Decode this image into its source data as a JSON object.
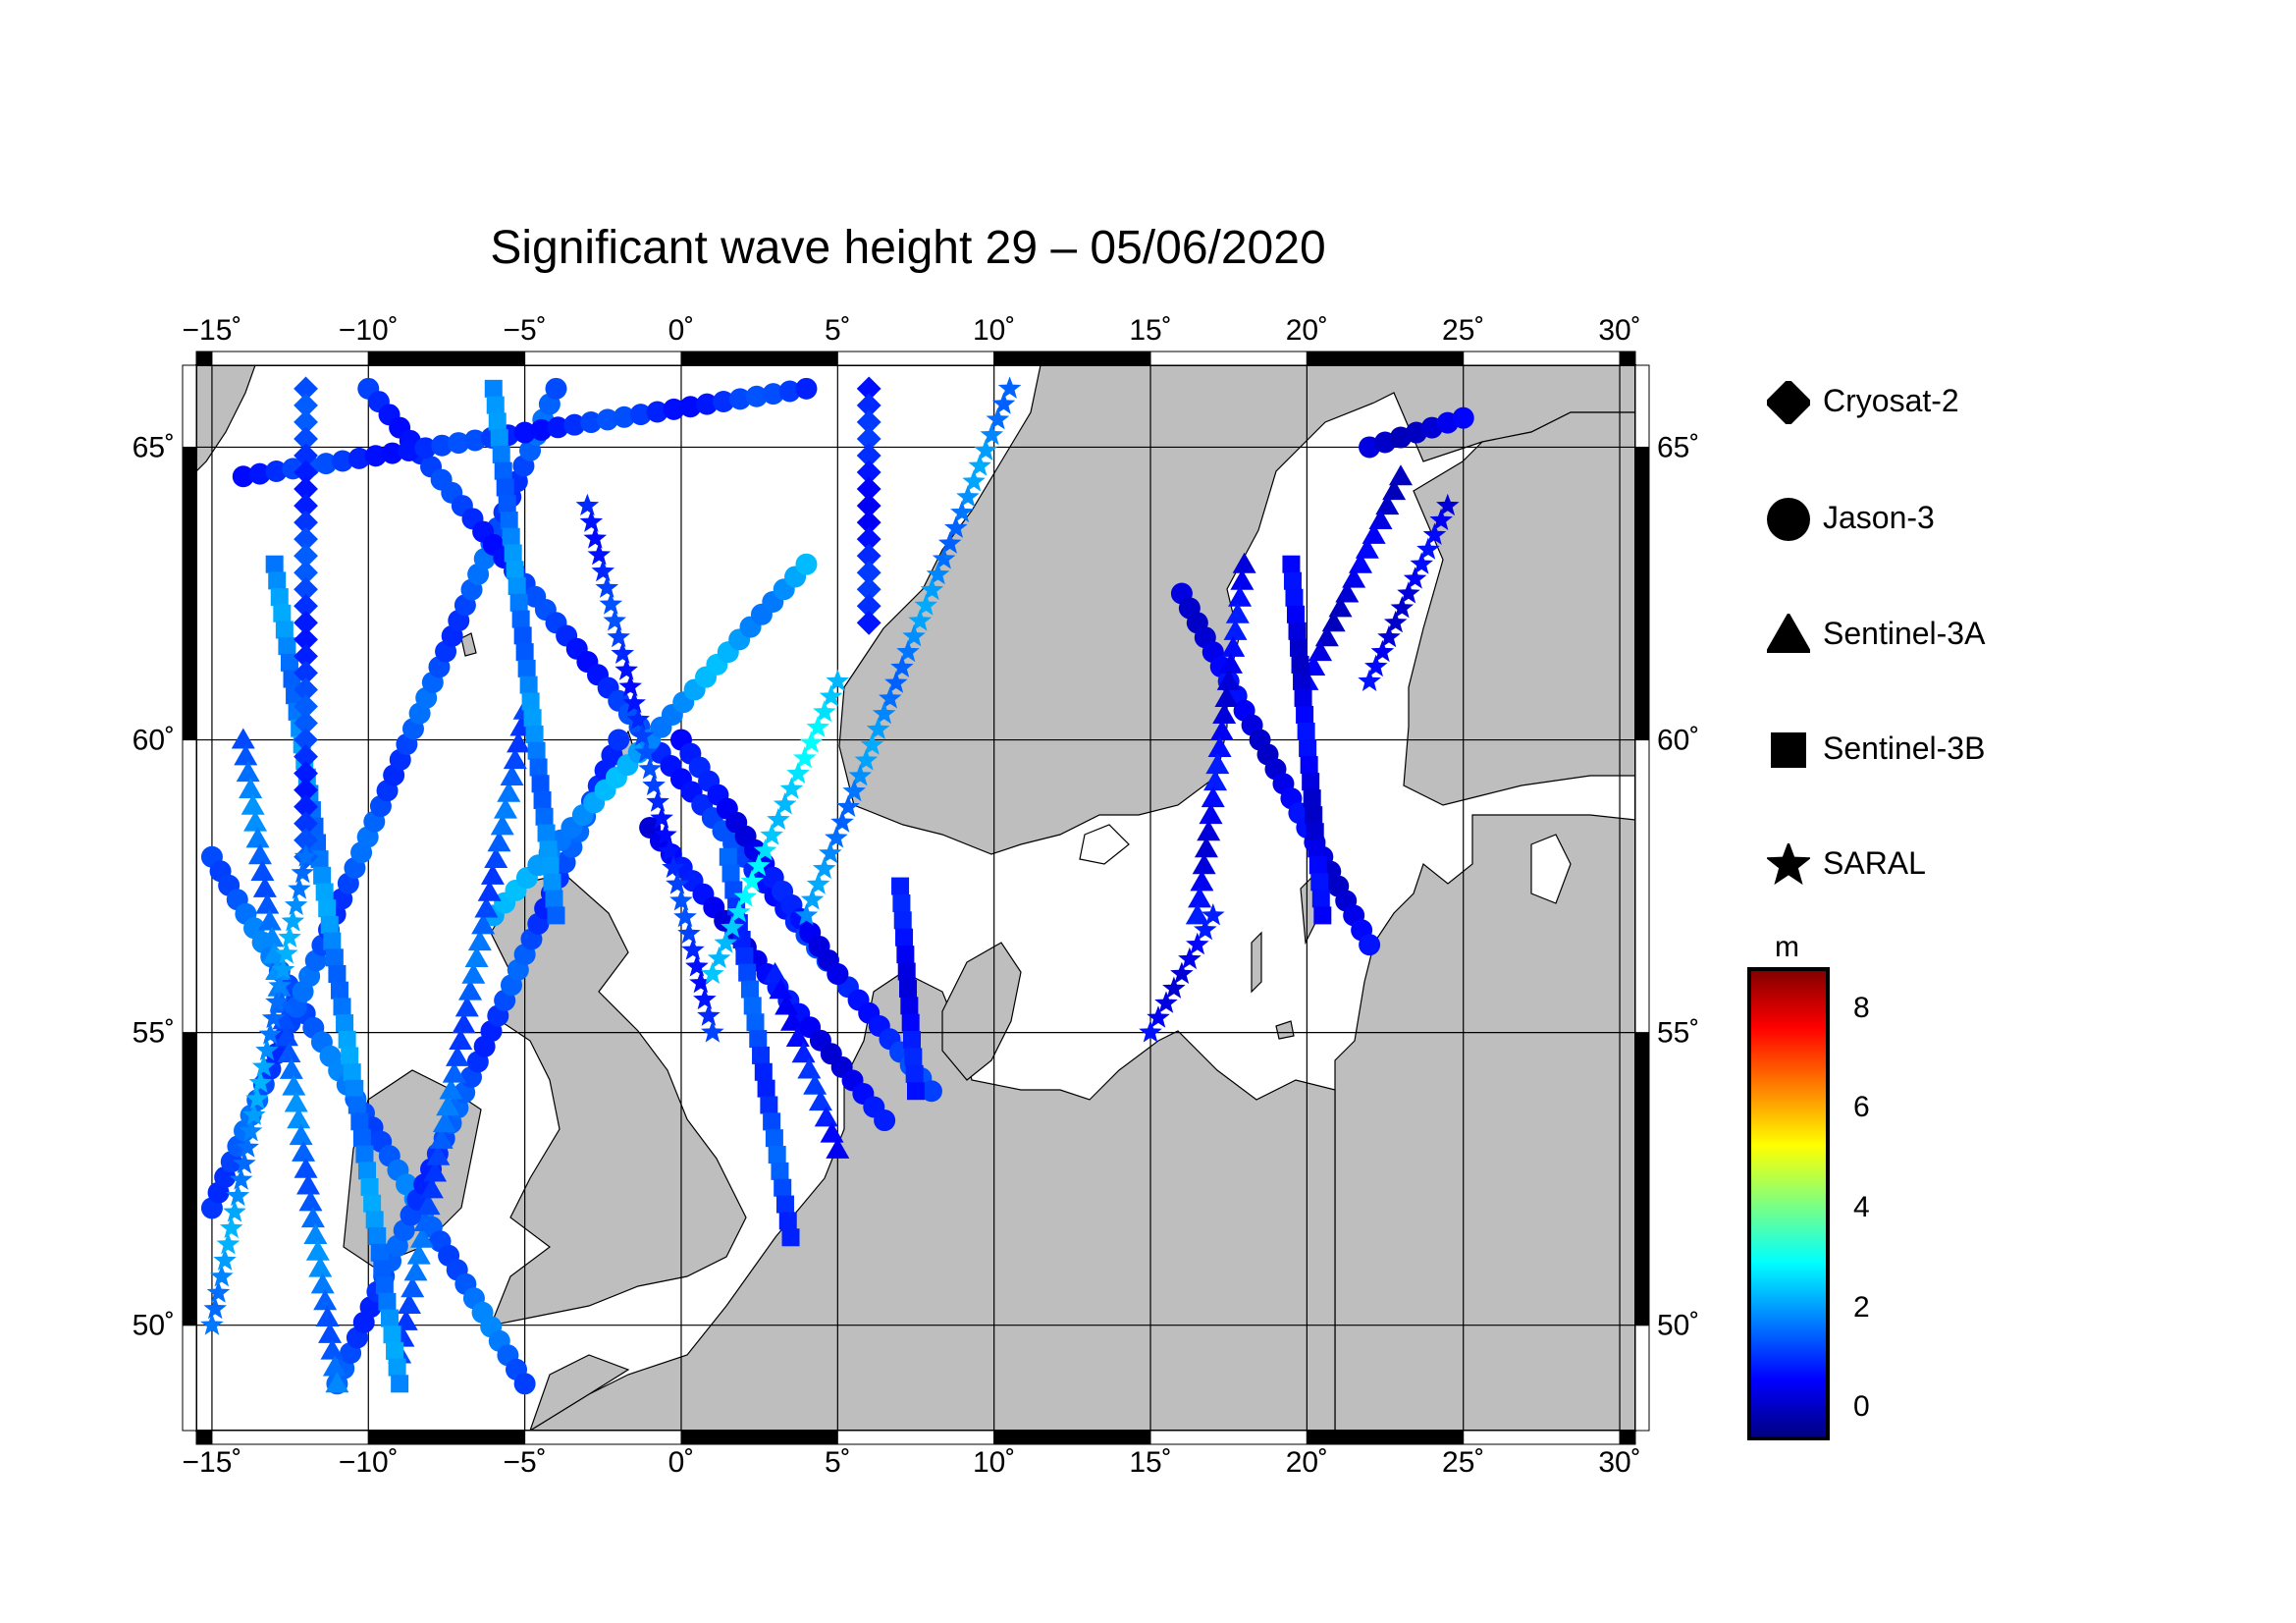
{
  "title": "Significant wave height 29 – 05/06/2020",
  "map": {
    "lon_range": [
      -15.5,
      30.5
    ],
    "lat_range": [
      48.2,
      66.4
    ],
    "lon_ticks": [
      {
        "v": -15,
        "label": "−15˚"
      },
      {
        "v": -10,
        "label": "−10˚"
      },
      {
        "v": -5,
        "label": "−5˚"
      },
      {
        "v": 0,
        "label": "0˚"
      },
      {
        "v": 5,
        "label": "5˚"
      },
      {
        "v": 10,
        "label": "10˚"
      },
      {
        "v": 15,
        "label": "15˚"
      },
      {
        "v": 20,
        "label": "20˚"
      },
      {
        "v": 25,
        "label": "25˚"
      },
      {
        "v": 30,
        "label": "30˚"
      }
    ],
    "lat_ticks": [
      {
        "v": 50,
        "label": "50˚"
      },
      {
        "v": 55,
        "label": "55˚"
      },
      {
        "v": 60,
        "label": "60˚"
      },
      {
        "v": 65,
        "label": "65˚"
      }
    ],
    "colors": {
      "land": "#bebebe",
      "sea": "#ffffff",
      "grid": "#000000"
    }
  },
  "legend": [
    {
      "symbol": "diamond-icon",
      "label": "Cryosat-2"
    },
    {
      "symbol": "circle-icon",
      "label": "Jason-3"
    },
    {
      "symbol": "triangle-icon",
      "label": "Sentinel-3A"
    },
    {
      "symbol": "square-icon",
      "label": "Sentinel-3B"
    },
    {
      "symbol": "star-icon",
      "label": "SARAL"
    }
  ],
  "colorbar": {
    "unit": "m",
    "range": [
      -0.6,
      8.8
    ],
    "ticks": [
      {
        "v": 0,
        "label": "0"
      },
      {
        "v": 2,
        "label": "2"
      },
      {
        "v": 4,
        "label": "4"
      },
      {
        "v": 6,
        "label": "6"
      },
      {
        "v": 8,
        "label": "8"
      }
    ],
    "stops": [
      "#00007f",
      "#0000ff",
      "#007fff",
      "#00ffff",
      "#7fff7f",
      "#ffff00",
      "#ff7f00",
      "#ff0000",
      "#7f0000"
    ]
  },
  "chart_data": {
    "type": "scatter",
    "title": "Significant wave height 29 – 05/06/2020",
    "xlabel": "",
    "ylabel": "",
    "xlim": [
      -15.5,
      30.5
    ],
    "ylim": [
      48.2,
      66.4
    ],
    "color_scale": {
      "unit": "m",
      "range": [
        -0.6,
        8.8
      ]
    },
    "tracks": [
      {
        "name": "Jason-3",
        "symbol": "circle",
        "from": [
          -15.0,
          58.0
        ],
        "to": [
          -5.0,
          49.0
        ],
        "swh": 1.5
      },
      {
        "name": "Jason-3",
        "symbol": "circle",
        "from": [
          -15.0,
          52.0
        ],
        "to": [
          -4.0,
          66.0
        ],
        "swh": 1.3
      },
      {
        "name": "Jason-3",
        "symbol": "circle",
        "from": [
          -10.0,
          66.0
        ],
        "to": [
          8.0,
          54.0
        ],
        "swh": 1.0
      },
      {
        "name": "Jason-3",
        "symbol": "circle",
        "from": [
          -11.0,
          49.0
        ],
        "to": [
          -2.0,
          60.0
        ],
        "swh": 1.2
      },
      {
        "name": "Jason-3",
        "symbol": "circle",
        "from": [
          -14.0,
          64.5
        ],
        "to": [
          4.0,
          66.0
        ],
        "swh": 1.0
      },
      {
        "name": "Jason-3",
        "symbol": "circle",
        "from": [
          -6.0,
          57.0
        ],
        "to": [
          4.0,
          63.0
        ],
        "swh": 2.0
      },
      {
        "name": "Jason-3",
        "symbol": "circle",
        "from": [
          0.0,
          60.0
        ],
        "to": [
          5.0,
          56.0
        ],
        "swh": 0.6
      },
      {
        "name": "Jason-3",
        "symbol": "circle",
        "from": [
          -1.0,
          58.5
        ],
        "to": [
          6.5,
          53.5
        ],
        "swh": 0.5
      },
      {
        "name": "Jason-3",
        "symbol": "circle",
        "from": [
          16.0,
          62.5
        ],
        "to": [
          22.0,
          56.5
        ],
        "swh": 0.4
      },
      {
        "name": "Jason-3",
        "symbol": "circle",
        "from": [
          22.0,
          65.0
        ],
        "to": [
          25.0,
          65.5
        ],
        "swh": 0.3
      },
      {
        "name": "Sentinel-3A",
        "symbol": "triangle",
        "from": [
          -14.0,
          60.0
        ],
        "to": [
          -11.0,
          49.0
        ],
        "swh": 1.6
      },
      {
        "name": "Sentinel-3A",
        "symbol": "triangle",
        "from": [
          -9.0,
          49.5
        ],
        "to": [
          -5.0,
          60.5
        ],
        "swh": 1.4
      },
      {
        "name": "Sentinel-3A",
        "symbol": "triangle",
        "from": [
          3.0,
          56.0
        ],
        "to": [
          5.0,
          53.0
        ],
        "swh": 0.8
      },
      {
        "name": "Sentinel-3A",
        "symbol": "triangle",
        "from": [
          18.0,
          63.0
        ],
        "to": [
          16.5,
          57.0
        ],
        "swh": 0.5
      },
      {
        "name": "Sentinel-3A",
        "symbol": "triangle",
        "from": [
          23.0,
          64.5
        ],
        "to": [
          20.0,
          61.0
        ],
        "swh": 0.3
      },
      {
        "name": "Sentinel-3B",
        "symbol": "square",
        "from": [
          -13.0,
          63.0
        ],
        "to": [
          -9.0,
          49.0
        ],
        "swh": 1.8
      },
      {
        "name": "Sentinel-3B",
        "symbol": "square",
        "from": [
          -6.0,
          66.0
        ],
        "to": [
          -4.0,
          57.0
        ],
        "swh": 1.7
      },
      {
        "name": "Sentinel-3B",
        "symbol": "square",
        "from": [
          1.5,
          58.0
        ],
        "to": [
          3.5,
          51.5
        ],
        "swh": 1.2
      },
      {
        "name": "Sentinel-3B",
        "symbol": "square",
        "from": [
          7.0,
          57.5
        ],
        "to": [
          7.5,
          54.0
        ],
        "swh": 0.6
      },
      {
        "name": "Sentinel-3B",
        "symbol": "square",
        "from": [
          19.5,
          63.0
        ],
        "to": [
          20.5,
          57.0
        ],
        "swh": 0.4
      },
      {
        "name": "Cryosat-2",
        "symbol": "diamond",
        "from": [
          -12.0,
          66.0
        ],
        "to": [
          -12.0,
          58.0
        ],
        "swh": 1.1
      },
      {
        "name": "Cryosat-2",
        "symbol": "diamond",
        "from": [
          6.0,
          66.0
        ],
        "to": [
          6.0,
          62.0
        ],
        "swh": 0.8
      },
      {
        "name": "SARAL",
        "symbol": "star",
        "from": [
          -15.0,
          50.0
        ],
        "to": [
          -12.0,
          58.0
        ],
        "swh": 1.9
      },
      {
        "name": "SARAL",
        "symbol": "star",
        "from": [
          -3.0,
          64.0
        ],
        "to": [
          1.0,
          55.0
        ],
        "swh": 1.0
      },
      {
        "name": "SARAL",
        "symbol": "star",
        "from": [
          5.0,
          61.0
        ],
        "to": [
          1.0,
          56.0
        ],
        "swh": 2.6
      },
      {
        "name": "SARAL",
        "symbol": "star",
        "from": [
          10.5,
          66.0
        ],
        "to": [
          4.0,
          57.0
        ],
        "swh": 1.8
      },
      {
        "name": "SARAL",
        "symbol": "star",
        "from": [
          15.0,
          55.0
        ],
        "to": [
          17.0,
          57.0
        ],
        "swh": 0.5
      },
      {
        "name": "SARAL",
        "symbol": "star",
        "from": [
          24.5,
          64.0
        ],
        "to": [
          22.0,
          61.0
        ],
        "swh": 0.4
      }
    ]
  }
}
